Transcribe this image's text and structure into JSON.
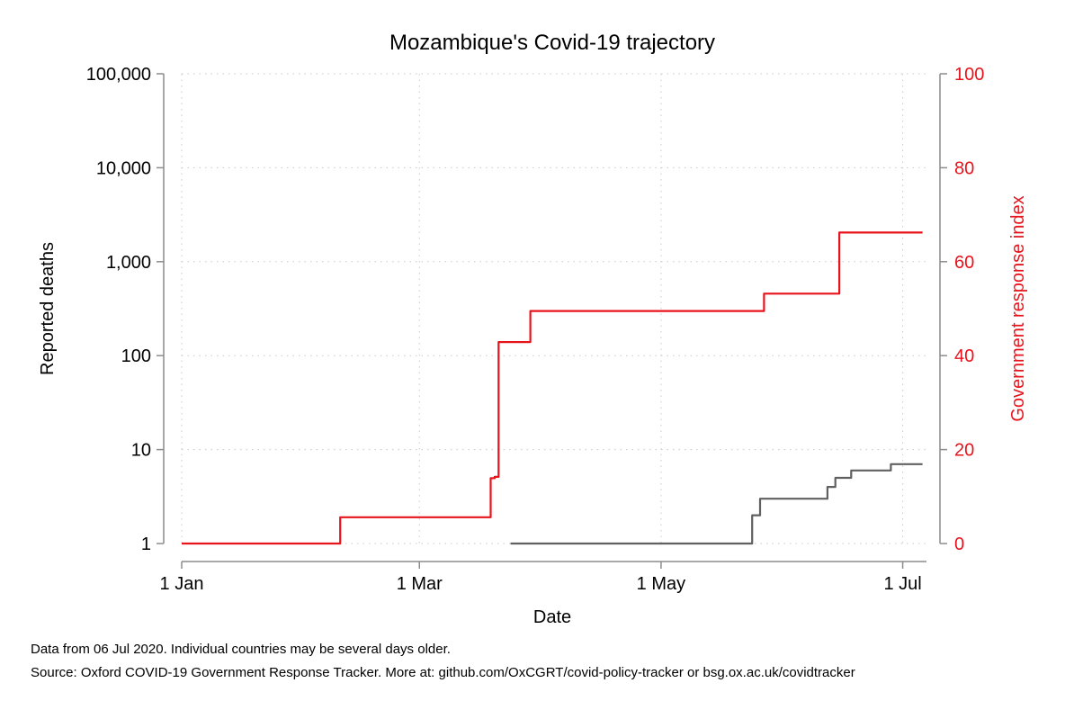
{
  "chart_data": {
    "type": "line",
    "title": "Mozambique's Covid-19 trajectory",
    "xlabel": "Date",
    "ylabel": "Reported deaths",
    "y2label": "Government response index",
    "x_range": [
      "2020-01-01",
      "2020-07-07"
    ],
    "x_ticks": [
      {
        "date": "2020-01-01",
        "label": "1 Jan"
      },
      {
        "date": "2020-03-01",
        "label": "1 Mar"
      },
      {
        "date": "2020-05-01",
        "label": "1 May"
      },
      {
        "date": "2020-07-01",
        "label": "1 Jul"
      }
    ],
    "y_scale": "log",
    "ylim": [
      1,
      100000
    ],
    "y_ticks": [
      {
        "value": 1,
        "label": "1"
      },
      {
        "value": 10,
        "label": "10"
      },
      {
        "value": 100,
        "label": "100"
      },
      {
        "value": 1000,
        "label": "1,000"
      },
      {
        "value": 10000,
        "label": "10,000"
      },
      {
        "value": 100000,
        "label": "100,000"
      }
    ],
    "y2_scale": "linear",
    "y2lim": [
      0,
      100
    ],
    "y2_ticks": [
      {
        "value": 0,
        "label": "0"
      },
      {
        "value": 20,
        "label": "20"
      },
      {
        "value": 40,
        "label": "40"
      },
      {
        "value": 60,
        "label": "60"
      },
      {
        "value": 80,
        "label": "80"
      },
      {
        "value": 100,
        "label": "100"
      }
    ],
    "grid": true,
    "series": [
      {
        "axis": "right",
        "color": "#e8141c",
        "step": true,
        "points": [
          {
            "x": "2020-01-01",
            "y": 0
          },
          {
            "x": "2020-02-10",
            "y": 5.6
          },
          {
            "x": "2020-03-19",
            "y": 13.9
          },
          {
            "x": "2020-03-20",
            "y": 14.2
          },
          {
            "x": "2020-03-21",
            "y": 42.9
          },
          {
            "x": "2020-03-29",
            "y": 49.5
          },
          {
            "x": "2020-05-27",
            "y": 53.2
          },
          {
            "x": "2020-06-15",
            "y": 66.2
          },
          {
            "x": "2020-07-06",
            "y": 66.2
          }
        ]
      },
      {
        "axis": "left",
        "color": "#606060",
        "step": true,
        "points": [
          {
            "x": "2020-03-24",
            "y": 1
          },
          {
            "x": "2020-05-24",
            "y": 2
          },
          {
            "x": "2020-05-26",
            "y": 3
          },
          {
            "x": "2020-06-12",
            "y": 4
          },
          {
            "x": "2020-06-14",
            "y": 5
          },
          {
            "x": "2020-06-18",
            "y": 6
          },
          {
            "x": "2020-06-28",
            "y": 7
          },
          {
            "x": "2020-07-06",
            "y": 7
          }
        ]
      }
    ]
  },
  "footer": {
    "note": "Data from 06 Jul 2020. Individual countries may be several days older.",
    "source": "Source: Oxford COVID-19 Government Response Tracker. More at: github.com/OxCGRT/covid-policy-tracker or bsg.ox.ac.uk/covidtracker"
  }
}
